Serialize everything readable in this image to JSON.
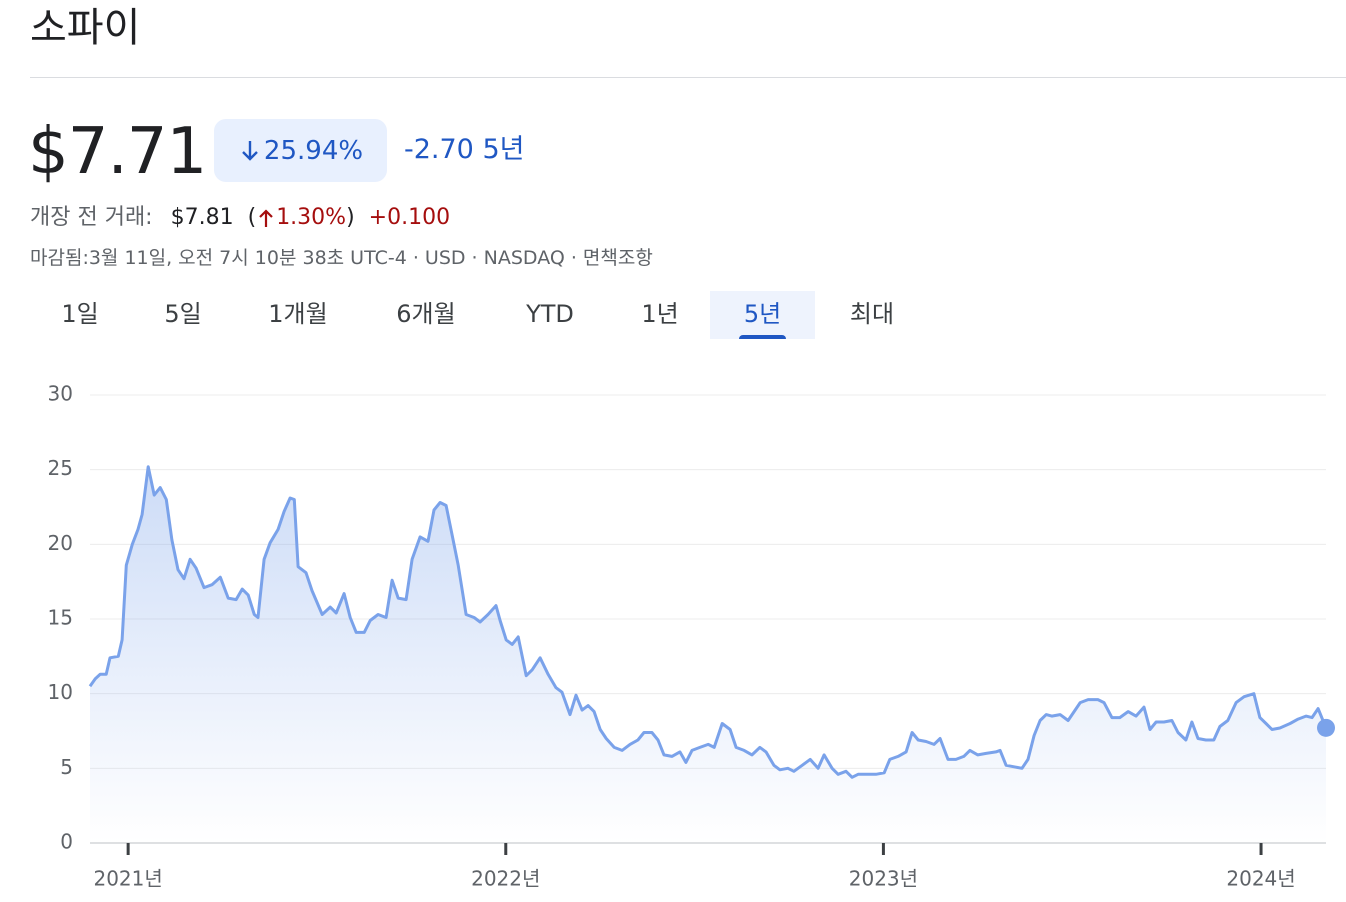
{
  "header": {
    "title": "소파이"
  },
  "quote": {
    "price": "$7.71",
    "change_pct": "25.94%",
    "change": "-2.70",
    "period": "5년",
    "premarket": {
      "label": "개장 전 거래:",
      "price": "$7.81",
      "paren_open": "(",
      "change_pct": "1.30%",
      "paren_close": ")",
      "change": "+0.100"
    },
    "footer": "마감됨:3월 11일, 오전 7시 10분 38초 UTC-4 · USD · NASDAQ · 면책조항"
  },
  "tabs": [
    {
      "label": "1일"
    },
    {
      "label": "5일"
    },
    {
      "label": "1개월"
    },
    {
      "label": "6개월"
    },
    {
      "label": "YTD"
    },
    {
      "label": "1년"
    },
    {
      "label": "5년",
      "selected": true
    },
    {
      "label": "최대"
    }
  ],
  "chart_data": {
    "type": "area",
    "color": "#7aa2ea",
    "x": [
      2020.899,
      2020.913,
      2020.926,
      2020.942,
      2020.952,
      2020.974,
      2020.984,
      2020.995,
      2021.011,
      2021.026,
      2021.037,
      2021.053,
      2021.069,
      2021.085,
      2021.101,
      2021.116,
      2021.132,
      2021.148,
      2021.164,
      2021.18,
      2021.201,
      2021.222,
      2021.244,
      2021.265,
      2021.286,
      2021.302,
      2021.318,
      2021.334,
      2021.344,
      2021.36,
      2021.376,
      2021.397,
      2021.413,
      2021.429,
      2021.44,
      2021.45,
      2021.471,
      2021.487,
      2021.514,
      2021.535,
      2021.551,
      2021.572,
      2021.588,
      2021.604,
      2021.625,
      2021.641,
      2021.662,
      2021.683,
      2021.699,
      2021.715,
      2021.736,
      2021.752,
      2021.773,
      2021.794,
      2021.81,
      2021.826,
      2021.842,
      2021.858,
      2021.874,
      2021.895,
      2021.916,
      2021.932,
      2021.953,
      2021.974,
      2021.985,
      2022.001,
      2022.017,
      2022.033,
      2022.054,
      2022.07,
      2022.091,
      2022.112,
      2022.133,
      2022.149,
      2022.17,
      2022.186,
      2022.202,
      2022.218,
      2022.234,
      2022.25,
      2022.266,
      2022.287,
      2022.308,
      2022.329,
      2022.35,
      2022.366,
      2022.387,
      2022.403,
      2022.419,
      2022.44,
      2022.461,
      2022.477,
      2022.493,
      2022.514,
      2022.536,
      2022.552,
      2022.573,
      2022.594,
      2022.61,
      2022.631,
      2022.652,
      2022.673,
      2022.689,
      2022.71,
      2022.726,
      2022.747,
      2022.763,
      2022.785,
      2022.806,
      2022.827,
      2022.843,
      2022.864,
      2022.88,
      2022.901,
      2022.917,
      2022.933,
      2022.954,
      2022.98,
      2023.002,
      2023.017,
      2023.039,
      2023.06,
      2023.076,
      2023.092,
      2023.113,
      2023.134,
      2023.15,
      2023.171,
      2023.192,
      2023.213,
      2023.229,
      2023.25,
      2023.272,
      2023.298,
      2023.309,
      2023.325,
      2023.346,
      2023.367,
      2023.383,
      2023.399,
      2023.415,
      2023.431,
      2023.446,
      2023.468,
      2023.489,
      2023.505,
      2023.521,
      2023.542,
      2023.568,
      2023.584,
      2023.605,
      2023.626,
      2023.648,
      2023.669,
      2023.69,
      2023.706,
      2023.722,
      2023.743,
      2023.764,
      2023.78,
      2023.801,
      2023.817,
      2023.833,
      2023.854,
      2023.875,
      2023.891,
      2023.912,
      2023.934,
      2023.955,
      2023.981,
      2023.997,
      2024.013,
      2024.029,
      2024.05,
      2024.077,
      2024.098,
      2024.119,
      2024.135,
      2024.151,
      2024.172
    ],
    "values": [
      10.5,
      11.0,
      11.3,
      11.3,
      12.4,
      12.5,
      13.6,
      18.6,
      20.0,
      21.0,
      22.0,
      25.2,
      23.3,
      23.8,
      23.0,
      20.3,
      18.3,
      17.7,
      19.0,
      18.4,
      17.1,
      17.3,
      17.8,
      16.4,
      16.3,
      17.0,
      16.6,
      15.3,
      15.1,
      19.0,
      20.1,
      21.0,
      22.2,
      23.1,
      23.0,
      18.5,
      18.1,
      16.9,
      15.3,
      15.8,
      15.4,
      16.7,
      15.1,
      14.1,
      14.1,
      14.9,
      15.3,
      15.1,
      17.6,
      16.4,
      16.3,
      19.0,
      20.5,
      20.2,
      22.3,
      22.8,
      22.6,
      20.6,
      18.6,
      15.3,
      15.1,
      14.8,
      15.3,
      15.9,
      14.9,
      13.6,
      13.3,
      13.8,
      11.2,
      11.6,
      12.4,
      11.3,
      10.4,
      10.1,
      8.6,
      9.9,
      8.9,
      9.2,
      8.8,
      7.6,
      7.0,
      6.4,
      6.2,
      6.6,
      6.9,
      7.4,
      7.4,
      6.9,
      5.9,
      5.8,
      6.1,
      5.4,
      6.2,
      6.4,
      6.6,
      6.4,
      8.0,
      7.6,
      6.4,
      6.2,
      5.9,
      6.4,
      6.1,
      5.2,
      4.9,
      5.0,
      4.8,
      5.2,
      5.6,
      5.0,
      5.9,
      5.0,
      4.6,
      4.8,
      4.4,
      4.6,
      4.6,
      4.6,
      4.7,
      5.6,
      5.8,
      6.1,
      7.4,
      6.9,
      6.8,
      6.6,
      7.0,
      5.6,
      5.6,
      5.8,
      6.2,
      5.9,
      6.0,
      6.1,
      6.2,
      5.2,
      5.1,
      5.0,
      5.6,
      7.2,
      8.2,
      8.6,
      8.5,
      8.6,
      8.2,
      8.8,
      9.4,
      9.6,
      9.6,
      9.4,
      8.4,
      8.4,
      8.8,
      8.5,
      9.1,
      7.6,
      8.1,
      8.1,
      8.2,
      7.4,
      6.9,
      8.1,
      7.0,
      6.9,
      6.9,
      7.8,
      8.2,
      9.4,
      9.8,
      10.0,
      8.4,
      8.0,
      7.6,
      7.7,
      8.0,
      8.3,
      8.5,
      8.4,
      9.0,
      7.71
    ],
    "xlim": [
      2020.899,
      2024.172
    ],
    "xticks": [
      {
        "value": 2021,
        "label": "2021년"
      },
      {
        "value": 2022,
        "label": "2022년"
      },
      {
        "value": 2023,
        "label": "2023년"
      },
      {
        "value": 2024,
        "label": "2024년"
      }
    ],
    "ylim": [
      0,
      30
    ],
    "yticks": [
      0,
      5,
      10,
      15,
      20,
      25,
      30
    ],
    "grid": true
  }
}
